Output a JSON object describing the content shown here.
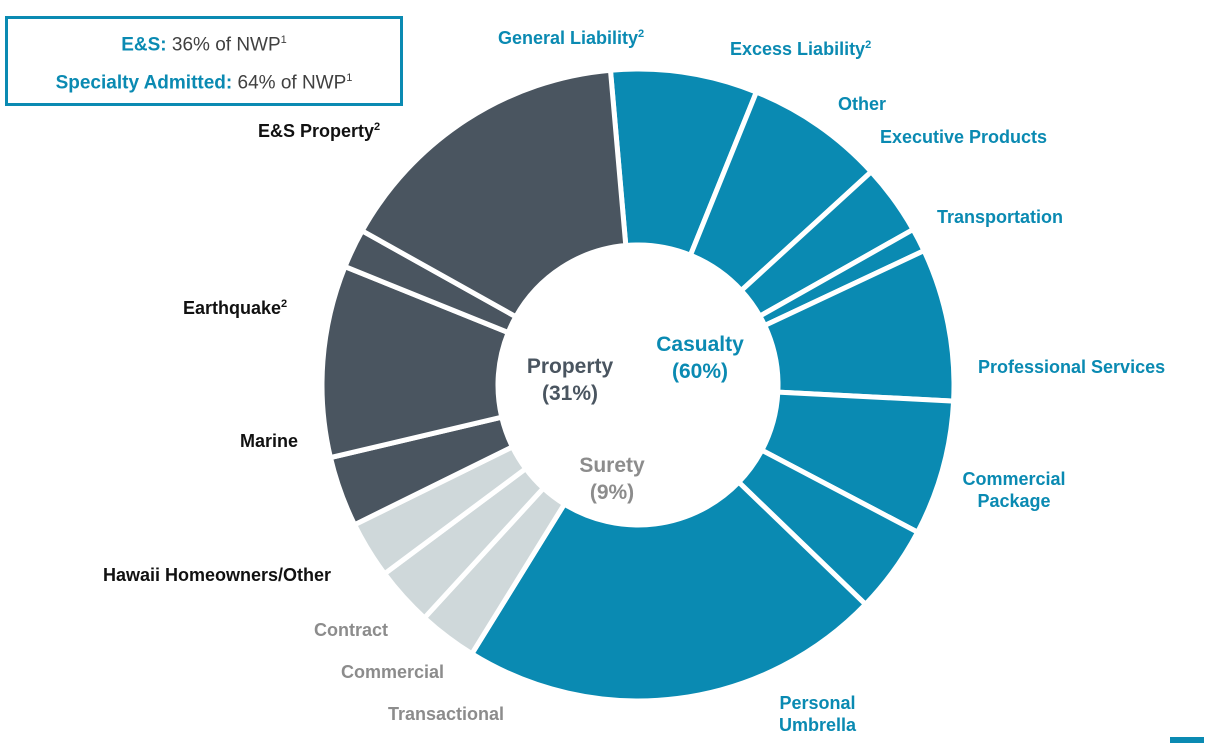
{
  "info_box": {
    "es_label": "E&S:",
    "es_text": "36% of NWP",
    "es_sup": "1",
    "sa_label": "Specialty Admitted:",
    "sa_text": "64% of NWP",
    "sa_sup": "1"
  },
  "colors": {
    "casualty": "#0a8ab2",
    "property": "#4a5560",
    "surety": "#cfd8da",
    "separator": "#ffffff",
    "accent": "#0a8ab2"
  },
  "chart_data": {
    "type": "pie",
    "donut": true,
    "title": "",
    "groups": [
      {
        "name": "Casualty",
        "percent_label": "(60%)",
        "share": 60
      },
      {
        "name": "Property",
        "percent_label": "(31%)",
        "share": 31
      },
      {
        "name": "Surety",
        "percent_label": "(9%)",
        "share": 9
      }
    ],
    "slices": [
      {
        "label": "General Liability",
        "sup": "2",
        "group": "Casualty",
        "value": 7.5
      },
      {
        "label": "Excess Liability",
        "sup": "2",
        "group": "Casualty",
        "value": 7.1
      },
      {
        "label": "Other",
        "sup": "",
        "group": "Casualty",
        "value": 3.6
      },
      {
        "label": "Executive Products",
        "sup": "",
        "group": "Casualty",
        "value": 1.2
      },
      {
        "label": "Transportation",
        "sup": "",
        "group": "Casualty",
        "value": 7.8
      },
      {
        "label": "Professional Services",
        "sup": "",
        "group": "Casualty",
        "value": 6.9
      },
      {
        "label": "Commercial Package",
        "sup": "",
        "group": "Casualty",
        "value": 4.5
      },
      {
        "label": "Personal Umbrella",
        "sup": "",
        "group": "Casualty",
        "value": 21.6
      },
      {
        "label": "Transactional",
        "sup": "",
        "group": "Surety",
        "value": 3.0
      },
      {
        "label": "Commercial",
        "sup": "",
        "group": "Surety",
        "value": 3.0
      },
      {
        "label": "Contract",
        "sup": "",
        "group": "Surety",
        "value": 2.9
      },
      {
        "label": "Hawaii Homeowners/Other",
        "sup": "",
        "group": "Property",
        "value": 3.6
      },
      {
        "label": "Marine",
        "sup": "",
        "group": "Property",
        "value": 9.8
      },
      {
        "label": "Earthquake",
        "sup": "2",
        "group": "Property",
        "value": 2.0
      },
      {
        "label": "E&S Property",
        "sup": "2",
        "group": "Property",
        "value": 15.5
      }
    ]
  }
}
